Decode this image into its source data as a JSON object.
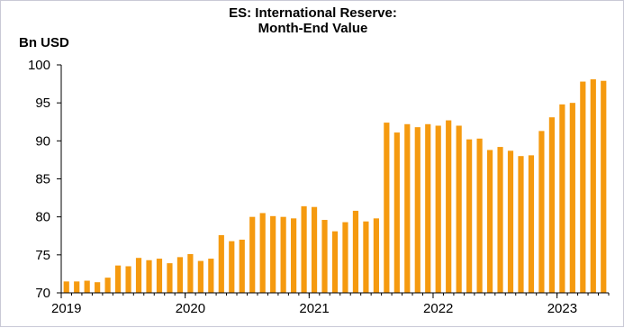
{
  "chart_data": {
    "type": "bar",
    "title": [
      "ES: International Reserve:",
      "Month-End Value"
    ],
    "ylabel": "Bn USD",
    "xlabel": "",
    "ylim": [
      70,
      100
    ],
    "yticks": [
      70,
      75,
      80,
      85,
      90,
      95,
      100
    ],
    "xticks": [
      "2019",
      "2020",
      "2021",
      "2022",
      "2023"
    ],
    "grid": false,
    "color": "#F59A0F",
    "categories": [
      "2019-01",
      "2019-02",
      "2019-03",
      "2019-04",
      "2019-05",
      "2019-06",
      "2019-07",
      "2019-08",
      "2019-09",
      "2019-10",
      "2019-11",
      "2019-12",
      "2020-01",
      "2020-02",
      "2020-03",
      "2020-04",
      "2020-05",
      "2020-06",
      "2020-07",
      "2020-08",
      "2020-09",
      "2020-10",
      "2020-11",
      "2020-12",
      "2021-01",
      "2021-02",
      "2021-03",
      "2021-04",
      "2021-05",
      "2021-06",
      "2021-07",
      "2021-08",
      "2021-09",
      "2021-10",
      "2021-11",
      "2021-12",
      "2022-01",
      "2022-02",
      "2022-03",
      "2022-04",
      "2022-05",
      "2022-06",
      "2022-07",
      "2022-08",
      "2022-09",
      "2022-10",
      "2022-11",
      "2022-12",
      "2023-01",
      "2023-02",
      "2023-03",
      "2023-04",
      "2023-05"
    ],
    "values": [
      71.5,
      71.5,
      71.6,
      71.4,
      72.0,
      73.6,
      73.5,
      74.6,
      74.3,
      74.5,
      73.9,
      74.7,
      75.1,
      74.2,
      74.5,
      77.6,
      76.8,
      77.0,
      80.0,
      80.5,
      80.1,
      80.0,
      79.8,
      81.4,
      81.3,
      79.6,
      78.1,
      79.3,
      80.8,
      79.4,
      79.8,
      92.4,
      91.1,
      92.2,
      91.8,
      92.2,
      92.0,
      92.7,
      92.0,
      90.2,
      90.3,
      88.8,
      89.2,
      88.7,
      88.0,
      88.1,
      91.3,
      93.1,
      94.8,
      95.0,
      97.8,
      98.1,
      97.9
    ]
  }
}
